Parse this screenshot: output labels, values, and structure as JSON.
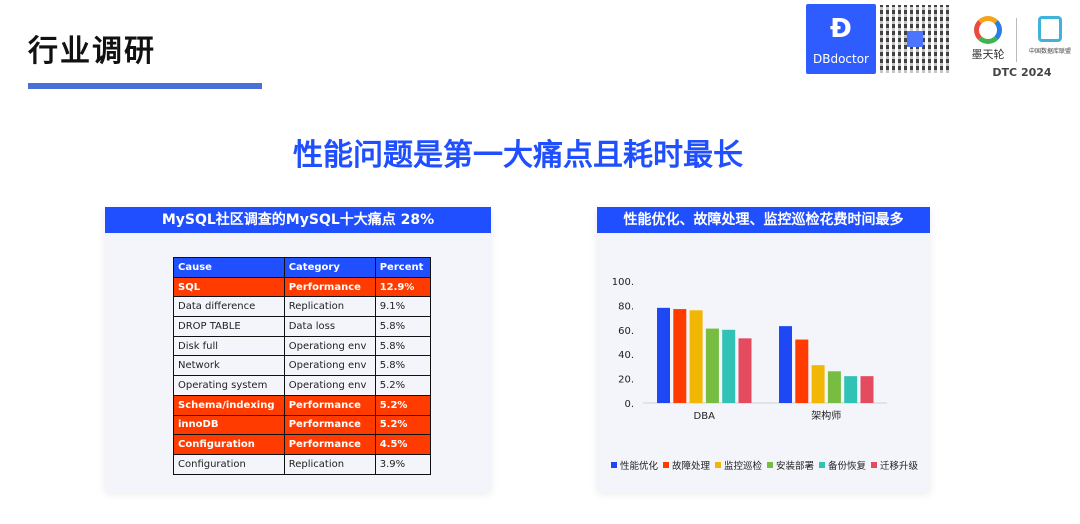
{
  "header": {
    "title": "行业调研",
    "headline": "性能问题是第一大痛点且耗时最长",
    "logos": {
      "dbdoctor": "DBdoctor",
      "motianlun": "墨天轮",
      "acdu": "中国数据库联盟",
      "event": "DTC 2024"
    }
  },
  "left_panel": {
    "title": "MySQL社区调查的MySQL十大痛点 28%",
    "columns": [
      "Cause",
      "Category",
      "Percent"
    ],
    "rows": [
      {
        "cause": "SQL",
        "category": "Performance",
        "percent": "12.9%",
        "highlight": true
      },
      {
        "cause": "Data difference",
        "category": "Replication",
        "percent": "9.1%",
        "highlight": false
      },
      {
        "cause": "DROP TABLE",
        "category": "Data loss",
        "percent": "5.8%",
        "highlight": false
      },
      {
        "cause": "Disk full",
        "category": "Operationg env",
        "percent": "5.8%",
        "highlight": false
      },
      {
        "cause": "Network",
        "category": "Operationg env",
        "percent": "5.8%",
        "highlight": false
      },
      {
        "cause": "Operating system",
        "category": "Operationg env",
        "percent": "5.2%",
        "highlight": false
      },
      {
        "cause": "Schema/indexing",
        "category": "Performance",
        "percent": "5.2%",
        "highlight": true
      },
      {
        "cause": "innoDB",
        "category": "Performance",
        "percent": "5.2%",
        "highlight": true
      },
      {
        "cause": "Configuration",
        "category": "Performance",
        "percent": "4.5%",
        "highlight": true
      },
      {
        "cause": "Configuration",
        "category": "Replication",
        "percent": "3.9%",
        "highlight": false
      }
    ],
    "highlight_color": "#ff3b00",
    "header_color": "#1f4fff"
  },
  "right_panel": {
    "title": "性能优化、故障处理、监控巡检花费时间最多"
  },
  "chart_data": {
    "type": "bar",
    "categories": [
      "DBA",
      "架构师"
    ],
    "series": [
      {
        "name": "性能优化",
        "color": "#1f48f5",
        "values": [
          78,
          63
        ]
      },
      {
        "name": "故障处理",
        "color": "#ff3b00",
        "values": [
          77,
          52
        ]
      },
      {
        "name": "监控巡检",
        "color": "#f2b705",
        "values": [
          76,
          31
        ]
      },
      {
        "name": "安装部署",
        "color": "#76bd42",
        "values": [
          61,
          26
        ]
      },
      {
        "name": "备份恢复",
        "color": "#2fc2b5",
        "values": [
          60,
          22
        ]
      },
      {
        "name": "迁移升级",
        "color": "#e54b5f",
        "values": [
          53,
          22
        ]
      }
    ],
    "yticks": [
      "0.",
      "20.",
      "40.",
      "60.",
      "80.",
      "100."
    ],
    "ylim": [
      0,
      100
    ],
    "legend": "bottom",
    "grid": false
  }
}
